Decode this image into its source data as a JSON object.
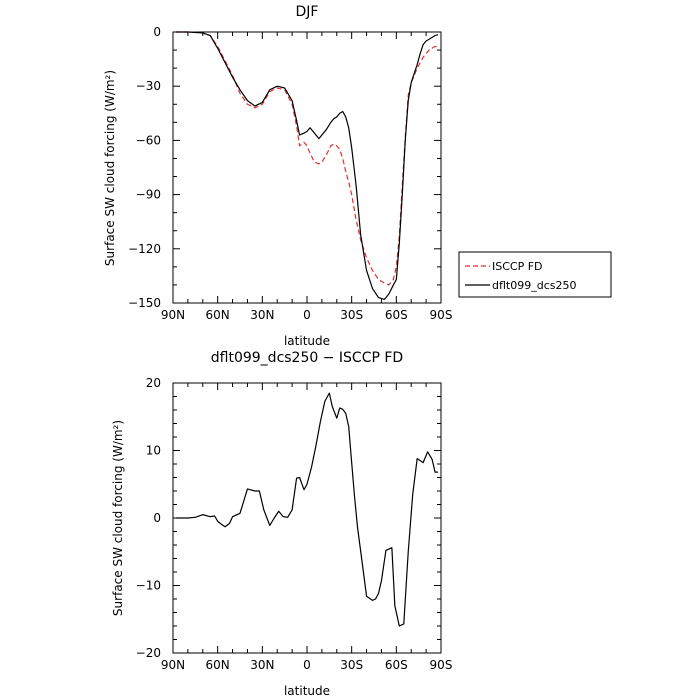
{
  "chart_data": [
    {
      "type": "line",
      "title": "DJF",
      "xlabel": "latitude",
      "ylabel": "Surface SW cloud forcing (W/m²)",
      "xlim": [
        -90,
        90
      ],
      "ylim": [
        -150,
        0
      ],
      "xtick_values": [
        -90,
        -60,
        -30,
        0,
        30,
        60,
        90
      ],
      "xtick_labels": [
        "90N",
        "60N",
        "30N",
        "0",
        "30S",
        "60S",
        "90S"
      ],
      "ytick_values": [
        0,
        -30,
        -60,
        -90,
        -120,
        -150
      ],
      "ytick_labels": [
        "0",
        "−30",
        "−60",
        "−90",
        "−120",
        "−150"
      ],
      "legend_position": "right",
      "x": [
        -88,
        -80,
        -70,
        -65,
        -60,
        -55,
        -50,
        -45,
        -40,
        -35,
        -30,
        -25,
        -20,
        -15,
        -10,
        -7,
        -5,
        -2,
        0,
        2,
        5,
        8,
        10,
        13,
        16,
        18,
        20,
        22,
        24,
        26,
        28,
        30,
        33,
        36,
        40,
        44,
        48,
        52,
        55,
        58,
        60,
        62,
        64,
        66,
        68,
        70,
        72,
        74,
        76,
        78,
        80,
        82,
        84,
        86,
        88
      ],
      "series": [
        {
          "name": "ISCCP FD",
          "color": "#e03030",
          "dash": "dashed",
          "values": [
            0,
            0,
            -0.5,
            -2,
            -8,
            -16,
            -24,
            -34,
            -40,
            -42,
            -40,
            -33,
            -31,
            -32,
            -40,
            -52,
            -63,
            -61,
            -63,
            -67,
            -72,
            -73,
            -72,
            -68,
            -63,
            -62,
            -63,
            -65,
            -70,
            -77,
            -83,
            -90,
            -104,
            -115,
            -125,
            -132,
            -137,
            -139,
            -140,
            -137,
            -130,
            -113,
            -85,
            -58,
            -35,
            -28,
            -24,
            -20,
            -17,
            -14,
            -12,
            -10,
            -9,
            -8,
            -8
          ]
        },
        {
          "name": "dflt099_dcs250",
          "color": "#000000",
          "dash": "solid",
          "values": [
            0,
            0,
            -0.5,
            -2,
            -9,
            -17,
            -25,
            -32,
            -38,
            -41,
            -39,
            -32,
            -30,
            -31,
            -38,
            -49,
            -57,
            -56,
            -55,
            -53,
            -56,
            -59,
            -57,
            -54,
            -50,
            -48,
            -47,
            -45,
            -44,
            -47,
            -53,
            -64,
            -85,
            -112,
            -132,
            -142,
            -147,
            -148,
            -145,
            -140,
            -137,
            -117,
            -90,
            -60,
            -38,
            -28,
            -23,
            -18,
            -12,
            -7,
            -5,
            -4,
            -3,
            -2,
            -1.5
          ]
        }
      ]
    },
    {
      "type": "line",
      "title": "dflt099_dcs250 − ISCCP FD",
      "xlabel": "latitude",
      "ylabel": "Surface SW cloud forcing (W/m²)",
      "xlim": [
        -90,
        90
      ],
      "ylim": [
        -20,
        20
      ],
      "xtick_values": [
        -90,
        -60,
        -30,
        0,
        30,
        60,
        90
      ],
      "xtick_labels": [
        "90N",
        "60N",
        "30N",
        "0",
        "30S",
        "60S",
        "90S"
      ],
      "ytick_values": [
        20,
        10,
        0,
        -10,
        -20
      ],
      "ytick_labels": [
        "20",
        "10",
        "0",
        "−10",
        "−20"
      ],
      "x": [
        -88,
        -80,
        -75,
        -70,
        -65,
        -62,
        -60,
        -57,
        -55,
        -52,
        -50,
        -45,
        -40,
        -35,
        -32,
        -29,
        -25,
        -22,
        -19,
        -16,
        -13,
        -10,
        -7,
        -5,
        -2,
        0,
        3,
        6,
        9,
        12,
        15,
        17,
        20,
        22,
        24,
        26,
        28,
        30,
        32,
        34,
        37,
        40,
        44,
        46,
        48,
        50,
        53,
        57,
        59,
        62,
        65,
        68,
        71,
        74,
        76,
        78,
        81,
        84,
        86,
        88
      ],
      "series": [
        {
          "name": "",
          "color": "#000000",
          "values": [
            0,
            0,
            0.1,
            0.5,
            0.2,
            0.3,
            -0.5,
            -1,
            -1.3,
            -0.8,
            0.2,
            0.7,
            4.3,
            4,
            4,
            1.2,
            -1.1,
            0,
            1,
            0.2,
            0.1,
            1.2,
            5.9,
            6,
            4.2,
            5,
            7.5,
            10.7,
            14.3,
            17.3,
            18.5,
            16.5,
            14.8,
            16.3,
            16.1,
            15.5,
            13.6,
            8.2,
            3,
            -1.5,
            -6.5,
            -11.6,
            -12.2,
            -12,
            -11.2,
            -9.3,
            -4.8,
            -4.4,
            -13,
            -16,
            -15.7,
            -5,
            3.5,
            8.8,
            8.5,
            8.2,
            9.8,
            8.7,
            6.8,
            6.8
          ]
        }
      ]
    }
  ]
}
